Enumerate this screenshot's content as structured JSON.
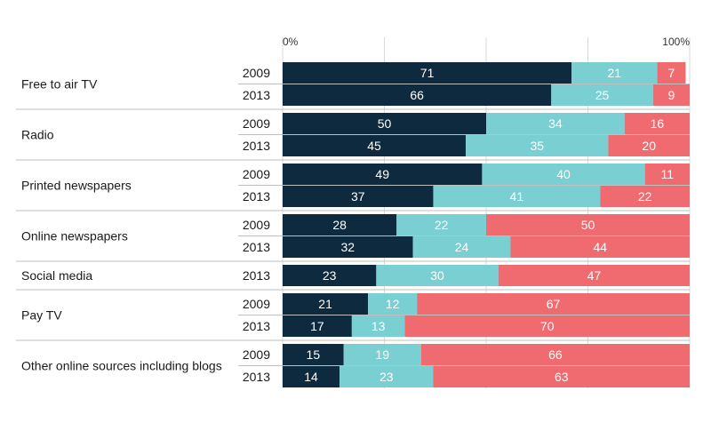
{
  "chart_data": {
    "type": "bar",
    "orientation": "horizontal",
    "stacked": true,
    "x_tick_labels": [
      "0%",
      "100%"
    ],
    "xlim": [
      0,
      100
    ],
    "grid": true,
    "series_colors": [
      "#0e2a3f",
      "#7acfd2",
      "#f06b6f"
    ],
    "groups": [
      {
        "category": "Free to air TV",
        "rows": [
          {
            "year": "2009",
            "values": [
              71,
              21,
              7
            ]
          },
          {
            "year": "2013",
            "values": [
              66,
              25,
              9
            ]
          }
        ]
      },
      {
        "category": "Radio",
        "rows": [
          {
            "year": "2009",
            "values": [
              50,
              34,
              16
            ]
          },
          {
            "year": "2013",
            "values": [
              45,
              35,
              20
            ]
          }
        ]
      },
      {
        "category": "Printed newspapers",
        "rows": [
          {
            "year": "2009",
            "values": [
              49,
              40,
              11
            ]
          },
          {
            "year": "2013",
            "values": [
              37,
              41,
              22
            ]
          }
        ]
      },
      {
        "category": "Online newspapers",
        "rows": [
          {
            "year": "2009",
            "values": [
              28,
              22,
              50
            ]
          },
          {
            "year": "2013",
            "values": [
              32,
              24,
              44
            ]
          }
        ]
      },
      {
        "category": "Social media",
        "rows": [
          {
            "year": "2013",
            "values": [
              23,
              30,
              47
            ]
          }
        ]
      },
      {
        "category": "Pay TV",
        "rows": [
          {
            "year": "2009",
            "values": [
              21,
              12,
              67
            ]
          },
          {
            "year": "2013",
            "values": [
              17,
              13,
              70
            ]
          }
        ]
      },
      {
        "category": "Other online sources including blogs",
        "rows": [
          {
            "year": "2009",
            "values": [
              15,
              19,
              66
            ]
          },
          {
            "year": "2013",
            "values": [
              14,
              23,
              63
            ]
          }
        ]
      }
    ]
  }
}
